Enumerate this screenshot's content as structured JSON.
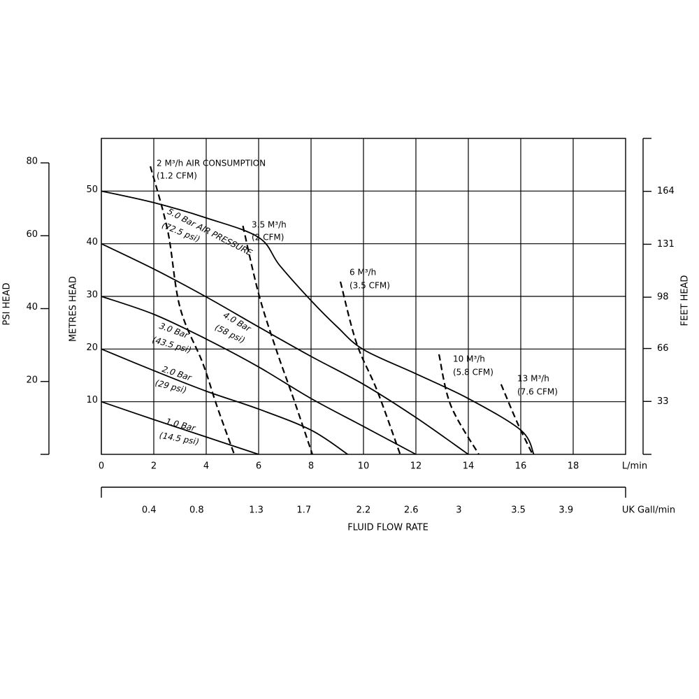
{
  "chart_data": {
    "type": "line",
    "xlabel": "L/min",
    "ylabel": "METRES HEAD",
    "title": "FLUID FLOW RATE",
    "xlim": [
      0,
      20
    ],
    "ylim": [
      0,
      60
    ],
    "xticks": [
      0,
      2,
      4,
      6,
      8,
      10,
      12,
      14,
      16,
      18
    ],
    "yticks": [
      10,
      20,
      30,
      40,
      50
    ],
    "grid": true,
    "x2label": "UK Gall/min",
    "x2lim": [
      0,
      4.4
    ],
    "x2ticks": [
      0.4,
      0.8,
      1.3,
      1.7,
      2.2,
      2.6,
      3.0,
      3.5,
      3.9
    ],
    "psi_axis": {
      "label": "PSI HEAD",
      "ylim": [
        0,
        80
      ],
      "yticks": [
        20,
        40,
        60,
        80
      ]
    },
    "feet_axis": {
      "label": "FEET HEAD",
      "ylim": [
        0,
        197
      ],
      "yticks": [
        33,
        66,
        98,
        131,
        164
      ]
    },
    "series": [
      {
        "name": "5.0 Bar AIR PRESSURE",
        "note": "(72.5 psi)",
        "color": "#000000",
        "dashed": false,
        "x": [
          0,
          2,
          4,
          6,
          6.8,
          8,
          9,
          10,
          12,
          14,
          16,
          16.5
        ],
        "values": [
          50,
          47.8,
          44.9,
          41.2,
          35.9,
          29.2,
          24.2,
          19.9,
          15.3,
          10.6,
          4.6,
          0
        ]
      },
      {
        "name": "4.0 Bar",
        "note": "(58 psi)",
        "color": "#000000",
        "dashed": false,
        "x": [
          0,
          2,
          4,
          6,
          8,
          10,
          12,
          14
        ],
        "values": [
          40,
          35.2,
          29.9,
          24.2,
          18.6,
          13.3,
          7,
          0
        ]
      },
      {
        "name": "3.0 Bar",
        "note": "(43.5 psi)",
        "color": "#000000",
        "dashed": false,
        "x": [
          0,
          2,
          4,
          6,
          8,
          10,
          12
        ],
        "values": [
          30,
          26.6,
          21.9,
          16.6,
          10.6,
          5.3,
          0
        ]
      },
      {
        "name": "2.0 Bar",
        "note": "(29 psi)",
        "color": "#000000",
        "dashed": false,
        "x": [
          0,
          2,
          4,
          6,
          8,
          9.4
        ],
        "values": [
          20,
          15.9,
          12,
          8.6,
          4.6,
          0
        ]
      },
      {
        "name": "1.0 Bar",
        "note": "(14.5 psi)",
        "color": "#000000",
        "dashed": false,
        "x": [
          0,
          2,
          4,
          6
        ],
        "values": [
          10,
          6.6,
          3.3,
          0
        ]
      },
      {
        "name": "2 M³/h AIR CONSUMPTION",
        "note": "(1.2 CFM)",
        "color": "#000000",
        "dashed": true,
        "x": [
          1.87,
          2.53,
          3.0,
          3.87,
          4.4,
          5.07
        ],
        "values": [
          54.7,
          42.5,
          27.9,
          17.3,
          9.3,
          0
        ]
      },
      {
        "name": "3.5 M³/h",
        "note": "(2 CFM)",
        "color": "#000000",
        "dashed": true,
        "x": [
          5.4,
          6,
          6.67,
          7.33,
          8.05
        ],
        "values": [
          43.4,
          30.5,
          19.9,
          10.6,
          0
        ]
      },
      {
        "name": "6 M³/h",
        "note": "(3.5 CFM)",
        "color": "#000000",
        "dashed": true,
        "x": [
          9.12,
          9.73,
          10.53,
          11.4
        ],
        "values": [
          32.8,
          21.2,
          12,
          0
        ]
      },
      {
        "name": "10 M³/h",
        "note": "(5.8 CFM)",
        "color": "#000000",
        "dashed": true,
        "x": [
          12.88,
          13.33,
          14.4
        ],
        "values": [
          19,
          9.3,
          0
        ]
      },
      {
        "name": "13 M³/h",
        "note": "(7.6 CFM)",
        "color": "#000000",
        "dashed": true,
        "x": [
          15.25,
          15.87,
          16.45
        ],
        "values": [
          13.3,
          6,
          0
        ]
      }
    ]
  }
}
